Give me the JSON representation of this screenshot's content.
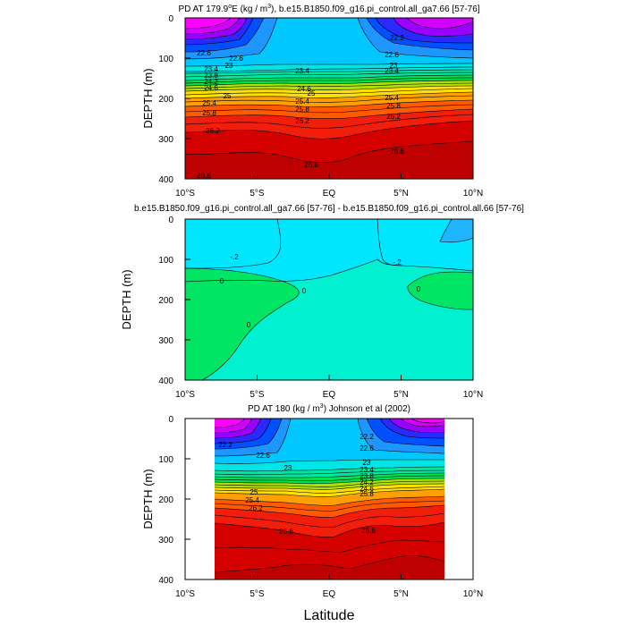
{
  "figure": {
    "xlabel": "Latitude"
  },
  "chart_data": [
    {
      "type": "heatmap",
      "title": "PD AT 179.9°E (kg / m³), b.e15.B1850.f09_g16.pi_control.all_ga7.66 [57-76]",
      "title_parts": {
        "pre": "PD AT 179.9",
        "deg": "o",
        "mid": "E (kg / m",
        "cube": "3",
        "post": "), b.e15.B1850.f09_g16.pi_control.all_ga7.66 [57-76]"
      },
      "xlabel": "",
      "ylabel": "DEPTH (m)",
      "x_ticks": [
        "10°S",
        "5°S",
        "EQ",
        "5°N",
        "10°N"
      ],
      "y_ticks": [
        "0",
        "100",
        "200",
        "300",
        "400"
      ],
      "xlim": [
        -10,
        10
      ],
      "ylim": [
        400,
        0
      ],
      "contour_labels": [
        "22.6",
        "22.6",
        "22.6",
        "23",
        "23",
        "23.4",
        "23.4",
        "23.4",
        "23.8",
        "24.2",
        "24.6",
        "24.6",
        "25",
        "25",
        "25.4",
        "25.4",
        "25.4",
        "25.8",
        "25.8",
        "25.8",
        "26.2",
        "26.2",
        "26.2",
        "26.6",
        "26.6",
        "26.6",
        "22.2"
      ],
      "regions": [
        {
          "level": 21.6,
          "color": "#FF00FF"
        },
        {
          "level": 22.0,
          "color": "#D300FF"
        },
        {
          "level": 22.2,
          "color": "#9A00FF"
        },
        {
          "level": 22.4,
          "color": "#2A2AFF"
        },
        {
          "level": 22.6,
          "color": "#0050FF"
        },
        {
          "level": 22.8,
          "color": "#1E96FF"
        },
        {
          "level": 23.0,
          "color": "#00C8FF"
        },
        {
          "level": 23.4,
          "color": "#00E6E6"
        },
        {
          "level": 23.8,
          "color": "#00E6A0"
        },
        {
          "level": 24.2,
          "color": "#00E050"
        },
        {
          "level": 24.6,
          "color": "#B0E000"
        },
        {
          "level": 25.0,
          "color": "#FFE000"
        },
        {
          "level": 25.4,
          "color": "#FFA000"
        },
        {
          "level": 25.8,
          "color": "#FF5A00"
        },
        {
          "level": 26.2,
          "color": "#F01E0A"
        },
        {
          "level": 26.6,
          "color": "#D40000"
        },
        {
          "level": 27.0,
          "color": "#BE0000"
        }
      ]
    },
    {
      "type": "heatmap",
      "title": "b.e15.B1850.f09_g16.pi_control.all_ga7.66 [57-76] - b.e15.B1850.f09_g16.pi_control.all.66 [57-76]",
      "xlabel": "",
      "ylabel": "DEPTH (m)",
      "x_ticks": [
        "10°S",
        "5°S",
        "EQ",
        "5°N",
        "10°N"
      ],
      "y_ticks": [
        "0",
        "100",
        "200",
        "300",
        "400"
      ],
      "xlim": [
        -10,
        10
      ],
      "ylim": [
        400,
        0
      ],
      "contour_labels": [
        "-.2",
        "-.2",
        "0",
        "0",
        "0",
        "0"
      ],
      "regions": [
        {
          "level": -0.4,
          "color": "#1EB4FF"
        },
        {
          "level": -0.2,
          "color": "#00E6FF"
        },
        {
          "level": 0.0,
          "color": "#00F0D0"
        },
        {
          "level": 0.2,
          "color": "#00E664"
        }
      ]
    },
    {
      "type": "heatmap",
      "title": "PD AT 180 (kg / m³) Johnson et al (2002)",
      "title_parts": {
        "pre": "PD AT 180 (kg / m",
        "cube": "3",
        "post": ") Johnson et al (2002)"
      },
      "xlabel": "Latitude",
      "ylabel": "DEPTH (m)",
      "x_ticks": [
        "10°S",
        "5°S",
        "EQ",
        "5°N",
        "10°N"
      ],
      "y_ticks": [
        "0",
        "100",
        "200",
        "300",
        "400"
      ],
      "xlim": [
        -10,
        10
      ],
      "ylim": [
        400,
        0
      ],
      "data_xrange": [
        -8,
        8
      ],
      "contour_labels": [
        "22.2",
        "22.2",
        "22.6",
        "22.6",
        "23",
        "23",
        "23.4",
        "23.8",
        "24.2",
        "24.6",
        "25",
        "25.4",
        "25.8",
        "26.2",
        "26.6",
        "26.6"
      ],
      "regions": [
        {
          "level": 21.6,
          "color": "#FF00FF"
        },
        {
          "level": 22.0,
          "color": "#D300FF"
        },
        {
          "level": 22.2,
          "color": "#9A00FF"
        },
        {
          "level": 22.4,
          "color": "#2A2AFF"
        },
        {
          "level": 22.6,
          "color": "#0050FF"
        },
        {
          "level": 22.8,
          "color": "#1E96FF"
        },
        {
          "level": 23.0,
          "color": "#00C8FF"
        },
        {
          "level": 23.4,
          "color": "#00E6E6"
        },
        {
          "level": 23.8,
          "color": "#00E6A0"
        },
        {
          "level": 24.2,
          "color": "#00E050"
        },
        {
          "level": 24.6,
          "color": "#B0E000"
        },
        {
          "level": 25.0,
          "color": "#FFE000"
        },
        {
          "level": 25.4,
          "color": "#FFA000"
        },
        {
          "level": 25.8,
          "color": "#FF5A00"
        },
        {
          "level": 26.2,
          "color": "#F01E0A"
        },
        {
          "level": 26.6,
          "color": "#D40000"
        },
        {
          "level": 27.0,
          "color": "#BE0000"
        }
      ]
    }
  ]
}
